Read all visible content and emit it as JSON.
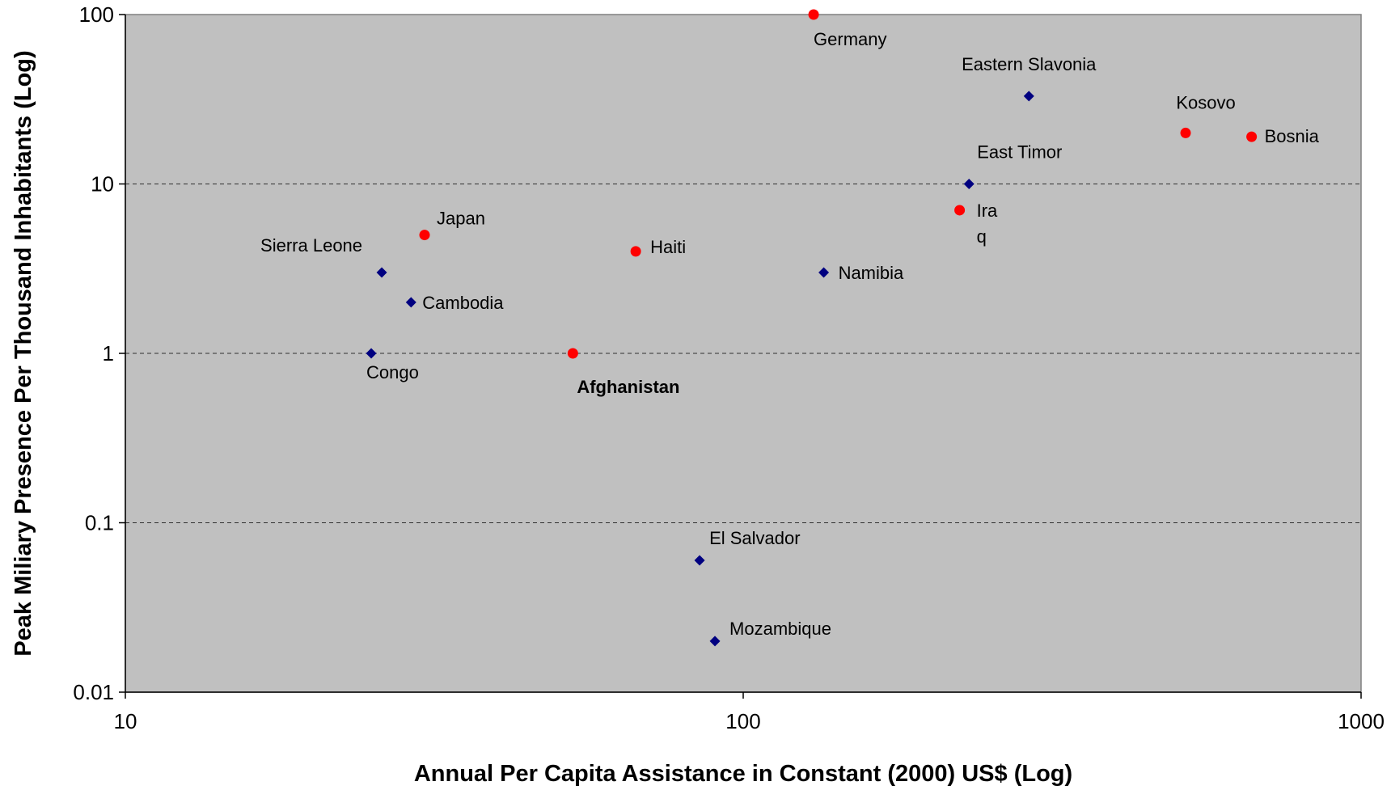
{
  "chart_data": {
    "type": "scatter",
    "title": "",
    "xlabel": "Annual Per Capita Assistance in Constant (2000) US$ (Log)",
    "ylabel": "Peak Miliary Presence Per Thousand Inhabitants (Log)",
    "xscale": "log",
    "yscale": "log",
    "xlim": [
      10,
      1000
    ],
    "ylim": [
      0.01,
      100
    ],
    "x_ticks": [
      "10",
      "100",
      "1000"
    ],
    "y_ticks": [
      "0.01",
      "0.1",
      "1",
      "10",
      "100"
    ],
    "grid": "horizontal dashed",
    "plot_background": "#c0c0c0",
    "colors": {
      "diamond_series": "#000080",
      "circle_series": "#ff0000"
    },
    "series": [
      {
        "marker": "diamond",
        "color": "#000080",
        "points": [
          {
            "label": "Eastern Slavonia",
            "x": 290,
            "y": 33
          },
          {
            "label": "East Timor",
            "x": 232,
            "y": 10
          },
          {
            "label": "Namibia",
            "x": 135,
            "y": 3
          },
          {
            "label": "Sierra Leone",
            "x": 26,
            "y": 3
          },
          {
            "label": "Cambodia",
            "x": 29,
            "y": 2
          },
          {
            "label": "Congo",
            "x": 25,
            "y": 1
          },
          {
            "label": "El Salvador",
            "x": 85,
            "y": 0.06
          },
          {
            "label": "Mozambique",
            "x": 90,
            "y": 0.02
          }
        ]
      },
      {
        "marker": "circle",
        "color": "#ff0000",
        "points": [
          {
            "label": "Germany",
            "x": 130,
            "y": 100
          },
          {
            "label": "Kosovo",
            "x": 520,
            "y": 20
          },
          {
            "label": "Bosnia",
            "x": 665,
            "y": 19
          },
          {
            "label": "Ira\nq",
            "x": 224,
            "y": 7
          },
          {
            "label": "Japan",
            "x": 30.5,
            "y": 5
          },
          {
            "label": "Haiti",
            "x": 67,
            "y": 4
          },
          {
            "label": "Afghanistan",
            "x": 53,
            "y": 1,
            "bold": true
          }
        ]
      }
    ]
  }
}
